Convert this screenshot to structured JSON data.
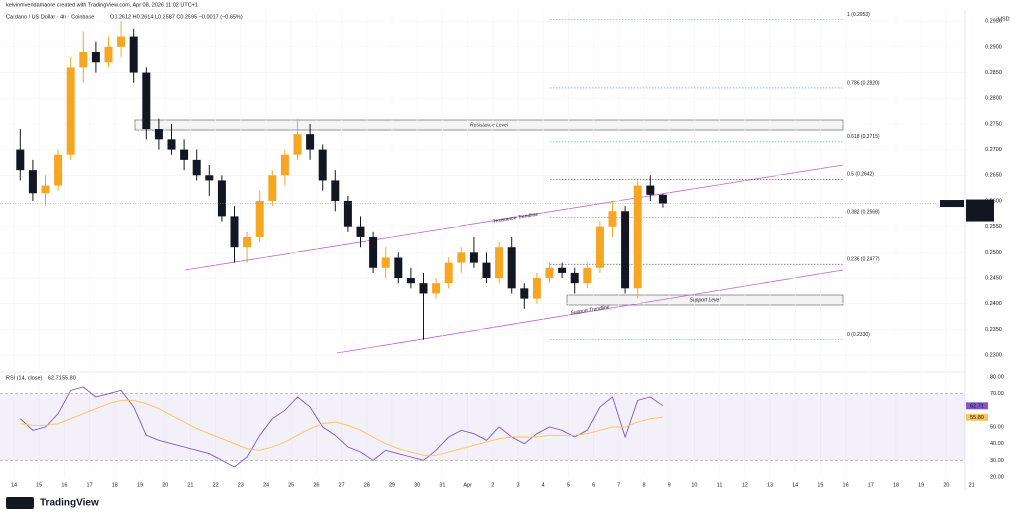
{
  "header": {
    "credit": "kelvinmvendamaore created with TradingView.com, Apr 08, 2026 11:02 UTC+1",
    "symbol": "Cardano / US Dollar · 4h · Coinbase",
    "ohlc": "O0.2612 H0.2614 L0.2587 C0.2595 −0.0017 (−0.65%)",
    "currency": "USD"
  },
  "footer": {
    "logo": "TradingView"
  },
  "chart_data": [
    {
      "type": "candlestick",
      "up_color": "#f5a623",
      "down_color": "#131722",
      "ylim": [
        0.2271,
        0.2962
      ],
      "yticks": [
        {
          "value": 0.23,
          "label": "0.2300"
        },
        {
          "value": 0.235,
          "label": "0.2350"
        },
        {
          "value": 0.24,
          "label": "0.2400"
        },
        {
          "value": 0.245,
          "label": "0.2450"
        },
        {
          "value": 0.25,
          "label": "0.2500"
        },
        {
          "value": 0.255,
          "label": "0.2550"
        },
        {
          "value": 0.26,
          "label": "0.2600"
        },
        {
          "value": 0.265,
          "label": "0.2650"
        },
        {
          "value": 0.27,
          "label": "0.2700"
        },
        {
          "value": 0.275,
          "label": "0.2750"
        },
        {
          "value": 0.28,
          "label": "0.2800"
        },
        {
          "value": 0.285,
          "label": "0.2850"
        },
        {
          "value": 0.29,
          "label": "0.2900"
        },
        {
          "value": 0.295,
          "label": "0.2950"
        }
      ],
      "xticks": [
        "14",
        "15",
        "16",
        "17",
        "18",
        "19",
        "20",
        "21",
        "22",
        "23",
        "24",
        "25",
        "26",
        "27",
        "28",
        "29",
        "30",
        "31",
        "Apr",
        "2",
        "3",
        "4",
        "5",
        "6",
        "7",
        "8",
        "9",
        "10",
        "11",
        "12",
        "13",
        "14",
        "15",
        "16",
        "17",
        "18",
        "19",
        "20",
        "21"
      ],
      "open": [
        0.27,
        0.266,
        0.2615,
        0.263,
        0.269,
        0.286,
        0.289,
        0.287,
        0.29,
        0.292,
        0.285,
        0.274,
        0.272,
        0.27,
        0.268,
        0.265,
        0.264,
        0.257,
        0.251,
        0.253,
        0.26,
        0.265,
        0.269,
        0.273,
        0.27,
        0.264,
        0.26,
        0.255,
        0.253,
        0.247,
        0.249,
        0.245,
        0.244,
        0.242,
        0.244,
        0.248,
        0.25,
        0.248,
        0.245,
        0.251,
        0.243,
        0.241,
        0.245,
        0.247,
        0.246,
        0.244,
        0.247,
        0.255,
        0.258,
        0.243,
        0.263,
        0.2612
      ],
      "high": [
        0.274,
        0.268,
        0.265,
        0.27,
        0.288,
        0.293,
        0.291,
        0.292,
        0.295,
        0.2935,
        0.286,
        0.276,
        0.275,
        0.272,
        0.27,
        0.267,
        0.265,
        0.259,
        0.254,
        0.262,
        0.266,
        0.27,
        0.276,
        0.275,
        0.271,
        0.266,
        0.261,
        0.257,
        0.254,
        0.251,
        0.25,
        0.247,
        0.246,
        0.245,
        0.249,
        0.251,
        0.253,
        0.25,
        0.252,
        0.253,
        0.244,
        0.246,
        0.248,
        0.248,
        0.247,
        0.248,
        0.256,
        0.26,
        0.259,
        0.264,
        0.265,
        0.2614
      ],
      "low": [
        0.264,
        0.26,
        0.259,
        0.262,
        0.268,
        0.283,
        0.285,
        0.286,
        0.288,
        0.283,
        0.272,
        0.27,
        0.269,
        0.266,
        0.264,
        0.261,
        0.256,
        0.248,
        0.248,
        0.252,
        0.259,
        0.263,
        0.268,
        0.268,
        0.262,
        0.258,
        0.254,
        0.251,
        0.246,
        0.245,
        0.244,
        0.243,
        0.233,
        0.241,
        0.243,
        0.246,
        0.247,
        0.244,
        0.244,
        0.242,
        0.239,
        0.24,
        0.244,
        0.245,
        0.242,
        0.243,
        0.246,
        0.253,
        0.242,
        0.241,
        0.26,
        0.2587
      ],
      "close": [
        0.266,
        0.2615,
        0.263,
        0.269,
        0.286,
        0.289,
        0.287,
        0.29,
        0.292,
        0.285,
        0.274,
        0.272,
        0.27,
        0.268,
        0.265,
        0.264,
        0.257,
        0.251,
        0.253,
        0.26,
        0.265,
        0.269,
        0.273,
        0.27,
        0.264,
        0.26,
        0.255,
        0.253,
        0.247,
        0.249,
        0.245,
        0.244,
        0.242,
        0.244,
        0.248,
        0.25,
        0.248,
        0.245,
        0.251,
        0.243,
        0.241,
        0.245,
        0.247,
        0.246,
        0.244,
        0.247,
        0.255,
        0.258,
        0.243,
        0.263,
        0.2612,
        0.2595
      ],
      "fib_levels": [
        {
          "label": "1 (0.2953)",
          "value": 0.2953,
          "color": "#e0527d"
        },
        {
          "label": "0.786 (0.2820)",
          "value": 0.282,
          "color": "#2962ff"
        },
        {
          "label": "0.618 (0.2715)",
          "value": 0.2715,
          "color": "#089981"
        },
        {
          "label": "0.5 (0.2642)",
          "value": 0.2642,
          "color": "#131722"
        },
        {
          "label": "0.382 (0.2568)",
          "value": 0.2568,
          "color": "#7e57c2"
        },
        {
          "label": "0.236 (0.2477)",
          "value": 0.2477,
          "color": "#131722"
        },
        {
          "label": "0 (0.2330)",
          "value": 0.233,
          "color": "#e0527d"
        }
      ],
      "annotations": {
        "resistance_level": "Resistance Level",
        "resistance_trendline": "Resistance Trendline",
        "support_trendline": "Support Trendline",
        "support_level": "Support Level"
      },
      "price_tag": {
        "symbol": "ADAUSD",
        "price": 0.2595,
        "change": "−4.46%",
        "countdown": "01:57:28"
      }
    },
    {
      "type": "line",
      "title": "RSI (14, close)",
      "ylim": [
        20,
        80
      ],
      "yticks": [
        {
          "value": 20,
          "label": "20.00"
        },
        {
          "value": 30,
          "label": "30.00"
        },
        {
          "value": 40,
          "label": "40.00"
        },
        {
          "value": 50,
          "label": "50.00"
        },
        {
          "value": 70,
          "label": "70.00"
        },
        {
          "value": 80,
          "label": "80.00"
        }
      ],
      "band": [
        30,
        70
      ],
      "series": [
        {
          "name": "RSI",
          "color": "#7e57c2",
          "value_label": "62.71",
          "values": [
            55,
            48,
            50,
            58,
            72,
            74,
            68,
            70,
            72,
            62,
            45,
            42,
            40,
            38,
            36,
            34,
            30,
            26,
            32,
            45,
            55,
            60,
            68,
            62,
            50,
            45,
            38,
            35,
            30,
            36,
            34,
            32,
            30,
            36,
            44,
            48,
            46,
            42,
            50,
            44,
            40,
            46,
            50,
            48,
            44,
            48,
            62,
            68,
            44,
            66,
            68,
            62.71
          ]
        },
        {
          "name": "RSI-based MA",
          "color": "#f7c55a",
          "value_label": "55.80",
          "values": [
            52,
            51,
            51,
            52,
            55,
            58,
            61,
            64,
            66,
            66,
            64,
            61,
            57,
            53,
            49,
            46,
            43,
            40,
            37,
            36,
            38,
            41,
            45,
            49,
            52,
            53,
            51,
            48,
            44,
            40,
            37,
            35,
            33,
            33,
            35,
            37,
            39,
            41,
            43,
            44,
            44,
            44,
            45,
            45,
            45,
            46,
            48,
            50,
            50,
            53,
            55,
            55.8
          ]
        }
      ]
    }
  ]
}
